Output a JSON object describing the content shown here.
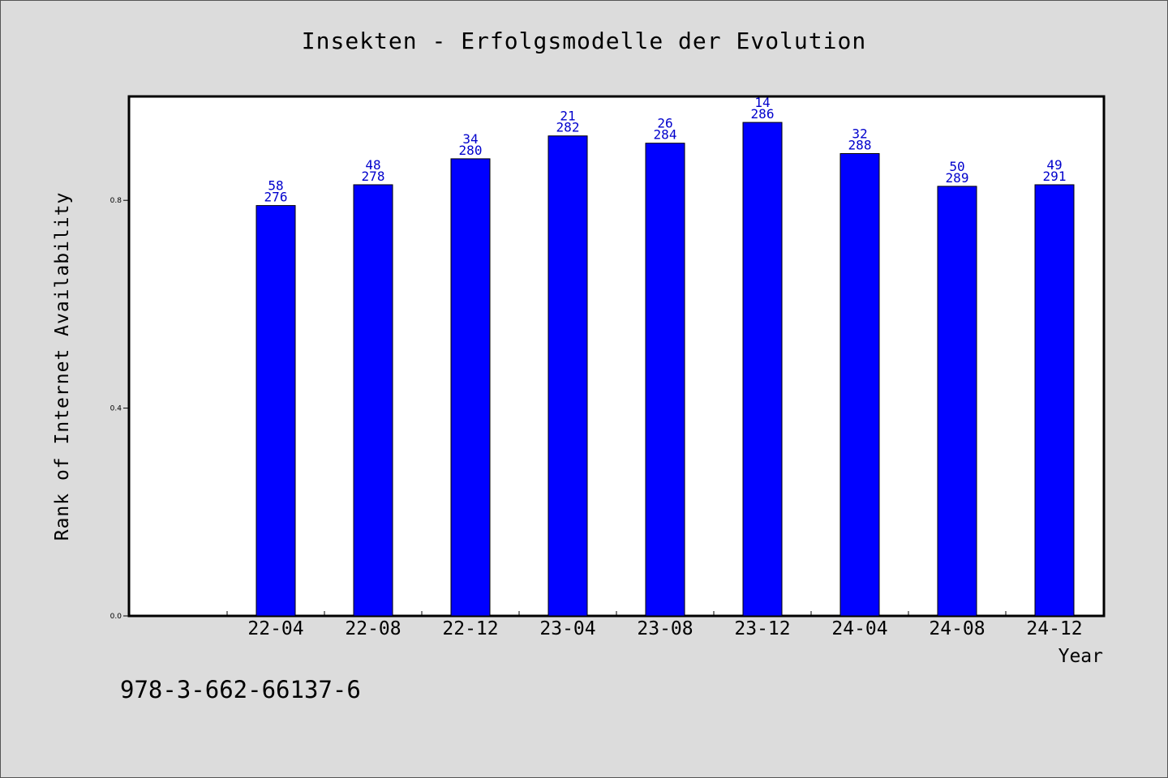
{
  "chart_data": {
    "type": "bar",
    "title": "Insekten - Erfolgsmodelle der Evolution",
    "xlabel": "Year",
    "ylabel": "Rank of Internet Availability",
    "categories": [
      "22-04",
      "22-08",
      "22-12",
      "23-04",
      "23-08",
      "23-12",
      "24-04",
      "24-08",
      "24-12"
    ],
    "values": [
      0.79,
      0.83,
      0.88,
      0.924,
      0.91,
      0.95,
      0.89,
      0.827,
      0.83
    ],
    "bar_labels_top": [
      "58",
      "48",
      "34",
      "21",
      "26",
      "14",
      "32",
      "50",
      "49"
    ],
    "bar_labels_bottom": [
      "276",
      "278",
      "280",
      "282",
      "284",
      "286",
      "288",
      "289",
      "291"
    ],
    "yticks": [
      0.0,
      0.4,
      0.8
    ],
    "ytick_labels": [
      "0.0",
      "0.4",
      "0.8"
    ],
    "ylim": [
      0,
      1.0
    ],
    "grid": false,
    "bar_color": "#0000ff",
    "label_color": "#0000cc"
  },
  "footer": {
    "isbn": "978-3-662-66137-6"
  }
}
